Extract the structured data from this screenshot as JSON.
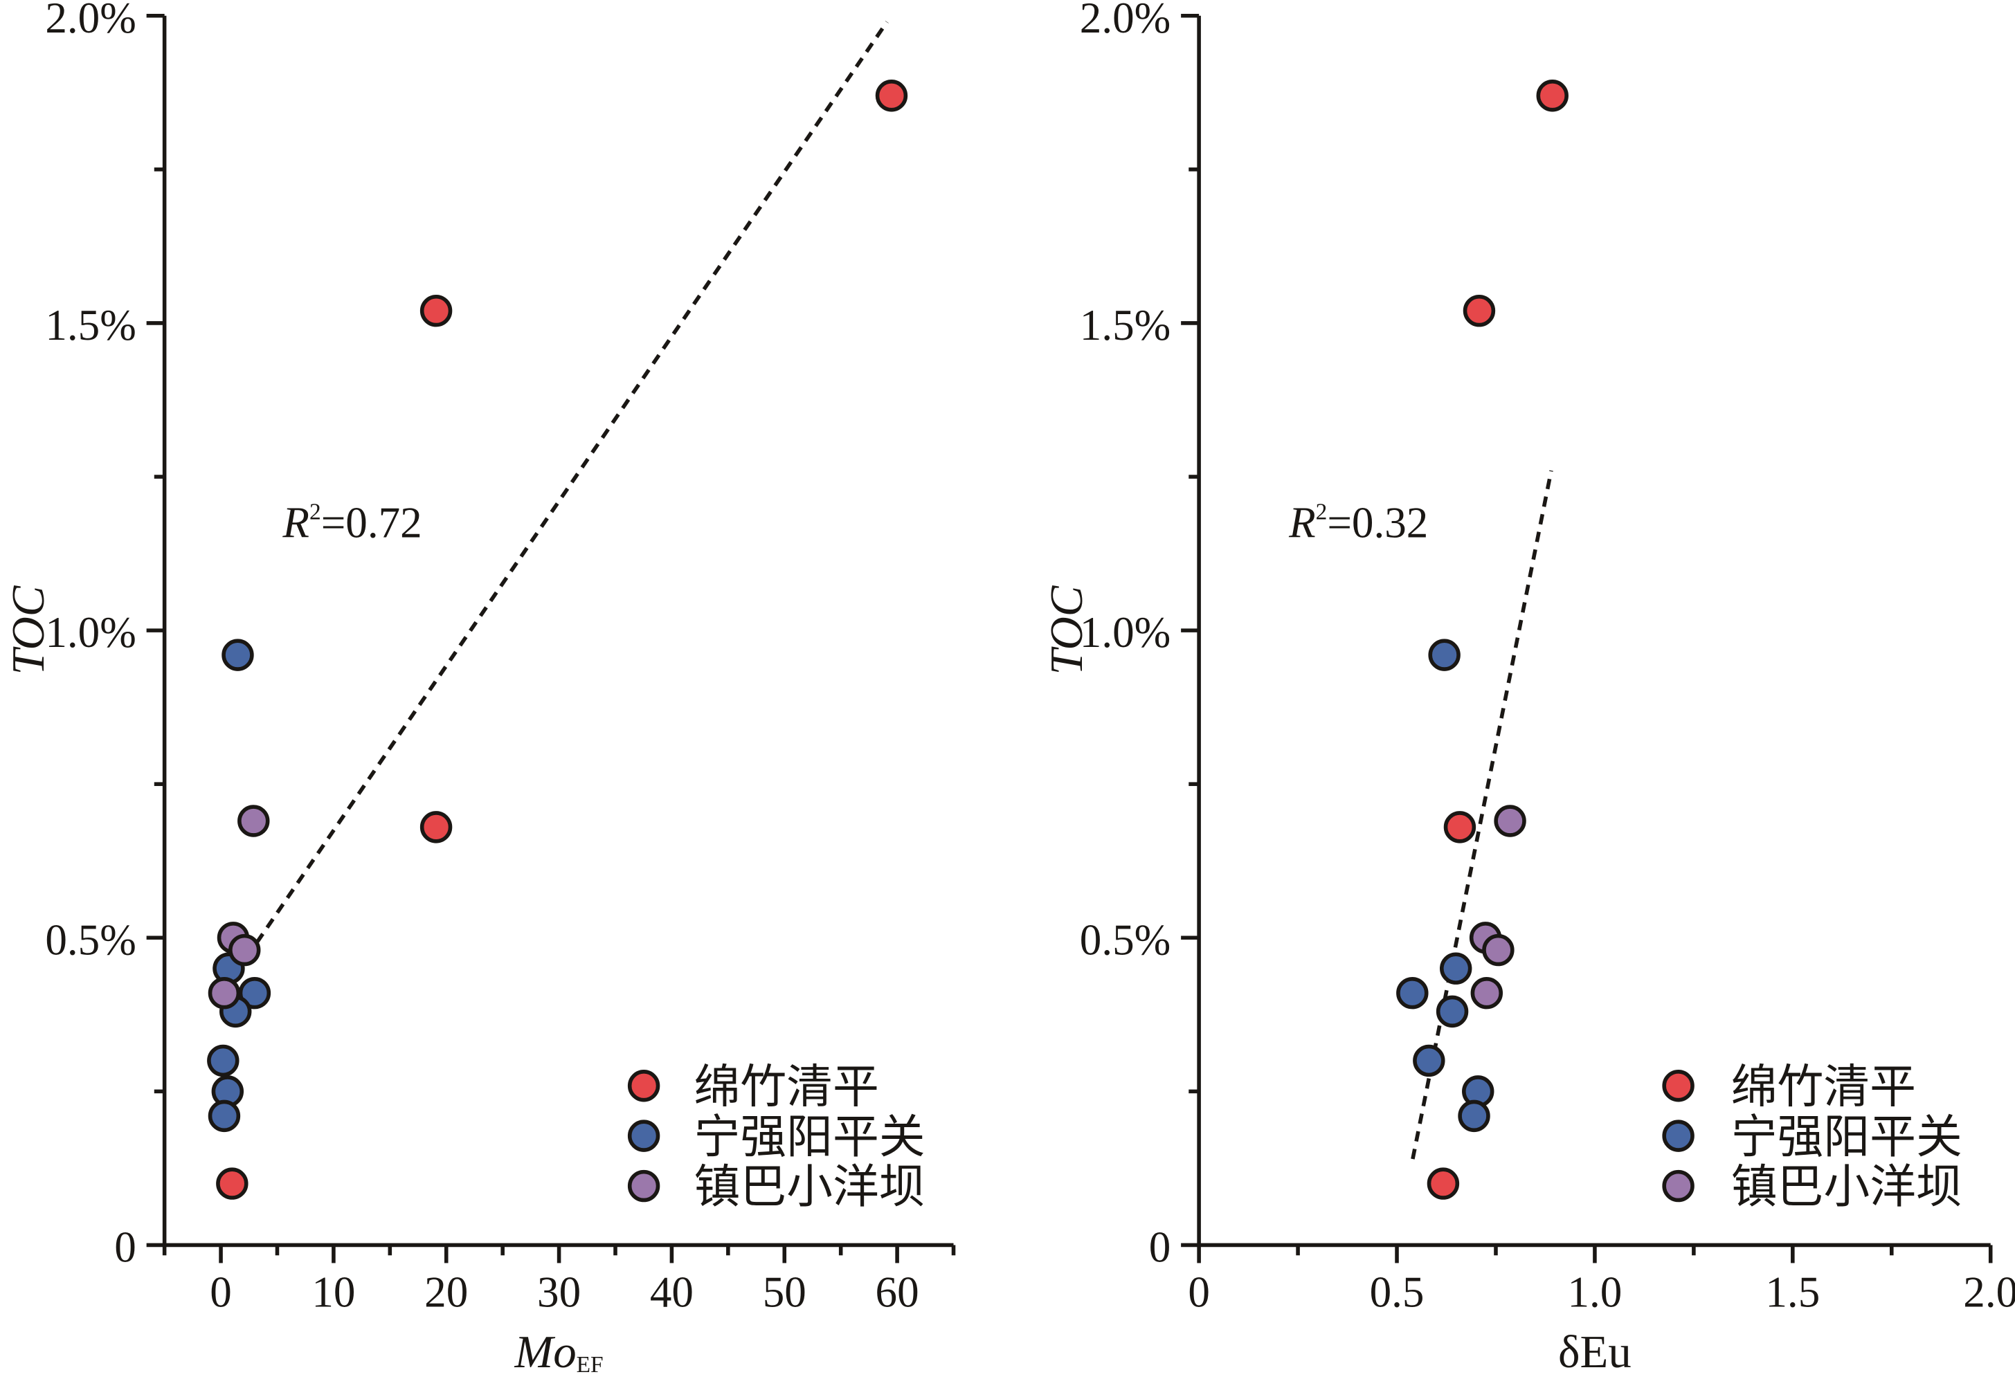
{
  "colors": {
    "绵竹清平": "#e6474a",
    "宁强阳平关": "#4767a3",
    "镇巴小洋坝": "#9b78ab",
    "axis": "#1a1714"
  },
  "chart_data": [
    {
      "type": "scatter",
      "xlabel": "Mo",
      "xlabel_subscript": "EF",
      "ylabel": "TOC",
      "xlim": [
        -5,
        65
      ],
      "ylim": [
        0,
        2.0
      ],
      "x_ticks": [
        0,
        10,
        20,
        30,
        40,
        50,
        60
      ],
      "x_tick_labels": [
        "0",
        "10",
        "20",
        "30",
        "40",
        "50",
        "60"
      ],
      "x_minor_ticks": [
        -5,
        5,
        15,
        25,
        35,
        45,
        55,
        65
      ],
      "y_ticks": [
        0,
        0.5,
        1.0,
        1.5,
        2.0
      ],
      "y_tick_labels": [
        "0",
        "0.5%",
        "1.0%",
        "1.5%",
        "2.0%"
      ],
      "y_minor_ticks": [
        0.25,
        0.75,
        1.25,
        1.75
      ],
      "y_unit": "%",
      "grid": false,
      "legend_position": "bottom-right",
      "annotation": {
        "r": "R",
        "sup": "2",
        "rest": "=0.72"
      },
      "trendline": {
        "style": "dashed",
        "x": [
          0.5,
          59.1
        ],
        "y": [
          0.42,
          1.99
        ]
      },
      "series": [
        {
          "name": "绵竹清平",
          "x": [
            59.5,
            19.1,
            19.1,
            1.0
          ],
          "y": [
            1.87,
            1.52,
            0.68,
            0.1
          ]
        },
        {
          "name": "宁强阳平关",
          "x": [
            1.5,
            0.7,
            3.0,
            1.3,
            0.2,
            0.6,
            0.3
          ],
          "y": [
            0.96,
            0.45,
            0.41,
            0.38,
            0.3,
            0.25,
            0.21
          ]
        },
        {
          "name": "镇巴小洋坝",
          "x": [
            2.9,
            1.1,
            2.1,
            0.3
          ],
          "y": [
            0.69,
            0.5,
            0.48,
            0.41
          ]
        }
      ]
    },
    {
      "type": "scatter",
      "xlabel": "δEu",
      "xlabel_subscript": "",
      "ylabel": "TOC",
      "xlim": [
        0,
        2.0
      ],
      "ylim": [
        0,
        2.0
      ],
      "x_ticks": [
        0,
        0.5,
        1.0,
        1.5,
        2.0
      ],
      "x_tick_labels": [
        "0",
        "0.5",
        "1.0",
        "1.5",
        "2.0"
      ],
      "x_minor_ticks": [
        0.25,
        0.75,
        1.25,
        1.75
      ],
      "y_ticks": [
        0,
        0.5,
        1.0,
        1.5,
        2.0
      ],
      "y_tick_labels": [
        "0",
        "0.5%",
        "1.0%",
        "1.5%",
        "2.0%"
      ],
      "y_minor_ticks": [
        0.25,
        0.75,
        1.25,
        1.75
      ],
      "y_unit": "%",
      "grid": false,
      "legend_position": "bottom-right",
      "annotation": {
        "r": "R",
        "sup": "2",
        "rest": "=0.32"
      },
      "trendline": {
        "style": "dashed",
        "x": [
          0.54,
          0.89
        ],
        "y": [
          0.14,
          1.26
        ]
      },
      "series": [
        {
          "name": "绵竹清平",
          "x": [
            0.893,
            0.708,
            0.659,
            0.617
          ],
          "y": [
            1.87,
            1.52,
            0.68,
            0.1
          ]
        },
        {
          "name": "宁强阳平关",
          "x": [
            0.62,
            0.649,
            0.539,
            0.64,
            0.581,
            0.705,
            0.695
          ],
          "y": [
            0.96,
            0.45,
            0.41,
            0.38,
            0.3,
            0.25,
            0.21
          ]
        },
        {
          "name": "镇巴小洋坝",
          "x": [
            0.786,
            0.724,
            0.756,
            0.727
          ],
          "y": [
            0.69,
            0.5,
            0.48,
            0.41
          ]
        }
      ]
    }
  ]
}
